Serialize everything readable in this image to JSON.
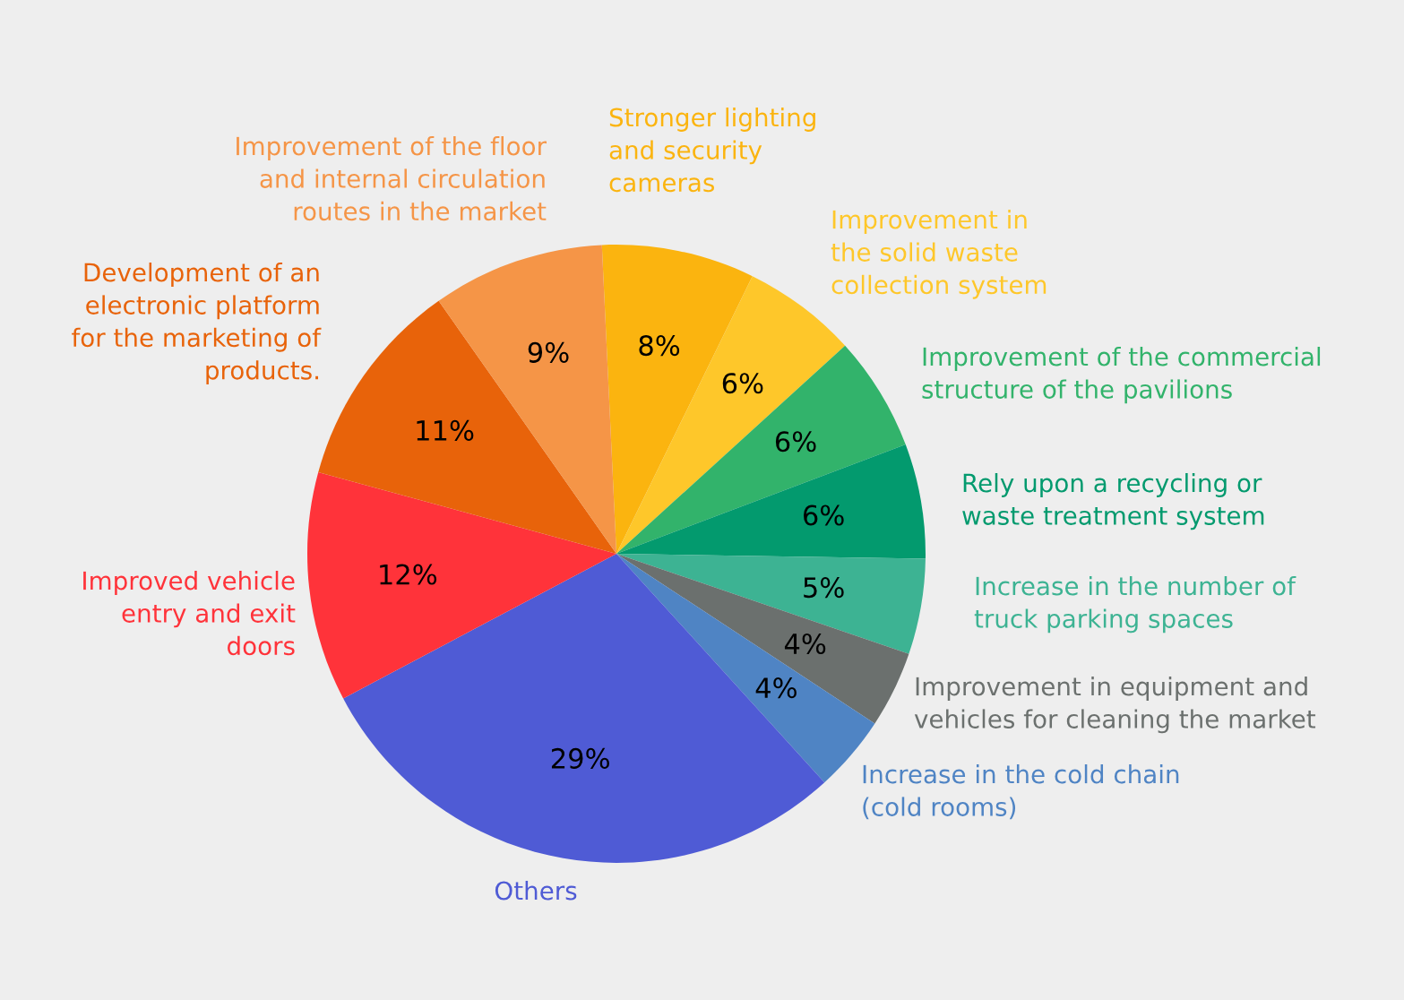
{
  "chart_data": {
    "type": "pie",
    "categories": [
      "Stronger lighting\nand security\ncameras",
      "Improvement in\nthe solid waste\ncollection system",
      "Improvement of the commercial\nstructure of the pavilions",
      "Rely upon a recycling or\nwaste treatment system",
      "Increase in the number of\ntruck parking spaces",
      "Improvement in equipment and\nvehicles for cleaning the market",
      "Increase in the cold chain\n(cold rooms)",
      "Others",
      "Improved vehicle\nentry and exit\ndoors",
      "Development of an\nelectronic platform\nfor the marketing of\nproducts.",
      "Improvement of the floor\nand internal circulation\nroutes in the market"
    ],
    "values": [
      8,
      6,
      6,
      6,
      5,
      4,
      4,
      29,
      12,
      11,
      9
    ],
    "value_labels": [
      "8%",
      "6%",
      "6%",
      "6%",
      "5%",
      "4%",
      "4%",
      "29%",
      "12%",
      "11%",
      "9%"
    ],
    "colors": [
      "#fbb40f",
      "#fec72a",
      "#32b36b",
      "#039a6e",
      "#3db393",
      "#6b706e",
      "#4f84c4",
      "#4f5bd5",
      "#ff333a",
      "#e8630a",
      "#f59547"
    ],
    "legend": false
  }
}
